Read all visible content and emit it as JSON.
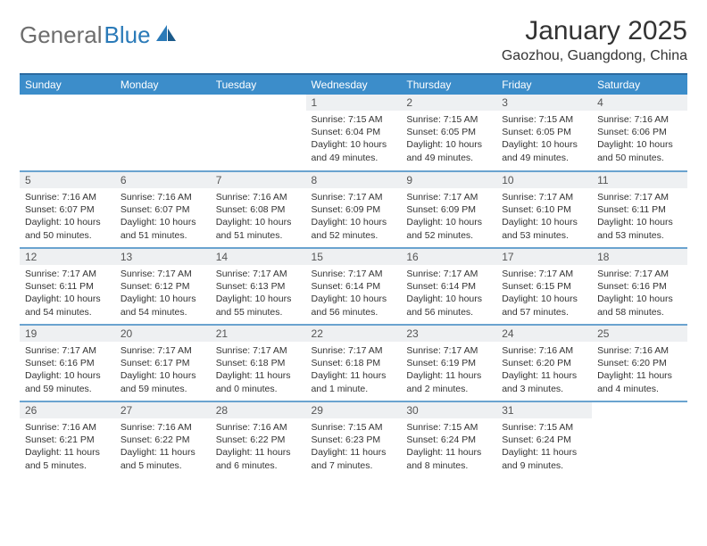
{
  "brand": {
    "name_gray": "General",
    "name_blue": "Blue"
  },
  "title": "January 2025",
  "location": "Gaozhou, Guangdong, China",
  "colors": {
    "header_bg": "#3c8dca",
    "header_text": "#ffffff",
    "row_divider": "#6aa3cf",
    "daynum_bg": "#eef0f2",
    "logo_gray": "#6d6d6d",
    "logo_blue": "#2a7ab8",
    "page_bg": "#ffffff",
    "text": "#333333"
  },
  "weekdays": [
    "Sunday",
    "Monday",
    "Tuesday",
    "Wednesday",
    "Thursday",
    "Friday",
    "Saturday"
  ],
  "labels": {
    "sunrise": "Sunrise:",
    "sunset": "Sunset:",
    "daylight": "Daylight:"
  },
  "weeks": [
    [
      null,
      null,
      null,
      {
        "day": "1",
        "sunrise": "7:15 AM",
        "sunset": "6:04 PM",
        "daylight": "10 hours and 49 minutes."
      },
      {
        "day": "2",
        "sunrise": "7:15 AM",
        "sunset": "6:05 PM",
        "daylight": "10 hours and 49 minutes."
      },
      {
        "day": "3",
        "sunrise": "7:15 AM",
        "sunset": "6:05 PM",
        "daylight": "10 hours and 49 minutes."
      },
      {
        "day": "4",
        "sunrise": "7:16 AM",
        "sunset": "6:06 PM",
        "daylight": "10 hours and 50 minutes."
      }
    ],
    [
      {
        "day": "5",
        "sunrise": "7:16 AM",
        "sunset": "6:07 PM",
        "daylight": "10 hours and 50 minutes."
      },
      {
        "day": "6",
        "sunrise": "7:16 AM",
        "sunset": "6:07 PM",
        "daylight": "10 hours and 51 minutes."
      },
      {
        "day": "7",
        "sunrise": "7:16 AM",
        "sunset": "6:08 PM",
        "daylight": "10 hours and 51 minutes."
      },
      {
        "day": "8",
        "sunrise": "7:17 AM",
        "sunset": "6:09 PM",
        "daylight": "10 hours and 52 minutes."
      },
      {
        "day": "9",
        "sunrise": "7:17 AM",
        "sunset": "6:09 PM",
        "daylight": "10 hours and 52 minutes."
      },
      {
        "day": "10",
        "sunrise": "7:17 AM",
        "sunset": "6:10 PM",
        "daylight": "10 hours and 53 minutes."
      },
      {
        "day": "11",
        "sunrise": "7:17 AM",
        "sunset": "6:11 PM",
        "daylight": "10 hours and 53 minutes."
      }
    ],
    [
      {
        "day": "12",
        "sunrise": "7:17 AM",
        "sunset": "6:11 PM",
        "daylight": "10 hours and 54 minutes."
      },
      {
        "day": "13",
        "sunrise": "7:17 AM",
        "sunset": "6:12 PM",
        "daylight": "10 hours and 54 minutes."
      },
      {
        "day": "14",
        "sunrise": "7:17 AM",
        "sunset": "6:13 PM",
        "daylight": "10 hours and 55 minutes."
      },
      {
        "day": "15",
        "sunrise": "7:17 AM",
        "sunset": "6:14 PM",
        "daylight": "10 hours and 56 minutes."
      },
      {
        "day": "16",
        "sunrise": "7:17 AM",
        "sunset": "6:14 PM",
        "daylight": "10 hours and 56 minutes."
      },
      {
        "day": "17",
        "sunrise": "7:17 AM",
        "sunset": "6:15 PM",
        "daylight": "10 hours and 57 minutes."
      },
      {
        "day": "18",
        "sunrise": "7:17 AM",
        "sunset": "6:16 PM",
        "daylight": "10 hours and 58 minutes."
      }
    ],
    [
      {
        "day": "19",
        "sunrise": "7:17 AM",
        "sunset": "6:16 PM",
        "daylight": "10 hours and 59 minutes."
      },
      {
        "day": "20",
        "sunrise": "7:17 AM",
        "sunset": "6:17 PM",
        "daylight": "10 hours and 59 minutes."
      },
      {
        "day": "21",
        "sunrise": "7:17 AM",
        "sunset": "6:18 PM",
        "daylight": "11 hours and 0 minutes."
      },
      {
        "day": "22",
        "sunrise": "7:17 AM",
        "sunset": "6:18 PM",
        "daylight": "11 hours and 1 minute."
      },
      {
        "day": "23",
        "sunrise": "7:17 AM",
        "sunset": "6:19 PM",
        "daylight": "11 hours and 2 minutes."
      },
      {
        "day": "24",
        "sunrise": "7:16 AM",
        "sunset": "6:20 PM",
        "daylight": "11 hours and 3 minutes."
      },
      {
        "day": "25",
        "sunrise": "7:16 AM",
        "sunset": "6:20 PM",
        "daylight": "11 hours and 4 minutes."
      }
    ],
    [
      {
        "day": "26",
        "sunrise": "7:16 AM",
        "sunset": "6:21 PM",
        "daylight": "11 hours and 5 minutes."
      },
      {
        "day": "27",
        "sunrise": "7:16 AM",
        "sunset": "6:22 PM",
        "daylight": "11 hours and 5 minutes."
      },
      {
        "day": "28",
        "sunrise": "7:16 AM",
        "sunset": "6:22 PM",
        "daylight": "11 hours and 6 minutes."
      },
      {
        "day": "29",
        "sunrise": "7:15 AM",
        "sunset": "6:23 PM",
        "daylight": "11 hours and 7 minutes."
      },
      {
        "day": "30",
        "sunrise": "7:15 AM",
        "sunset": "6:24 PM",
        "daylight": "11 hours and 8 minutes."
      },
      {
        "day": "31",
        "sunrise": "7:15 AM",
        "sunset": "6:24 PM",
        "daylight": "11 hours and 9 minutes."
      },
      null
    ]
  ]
}
